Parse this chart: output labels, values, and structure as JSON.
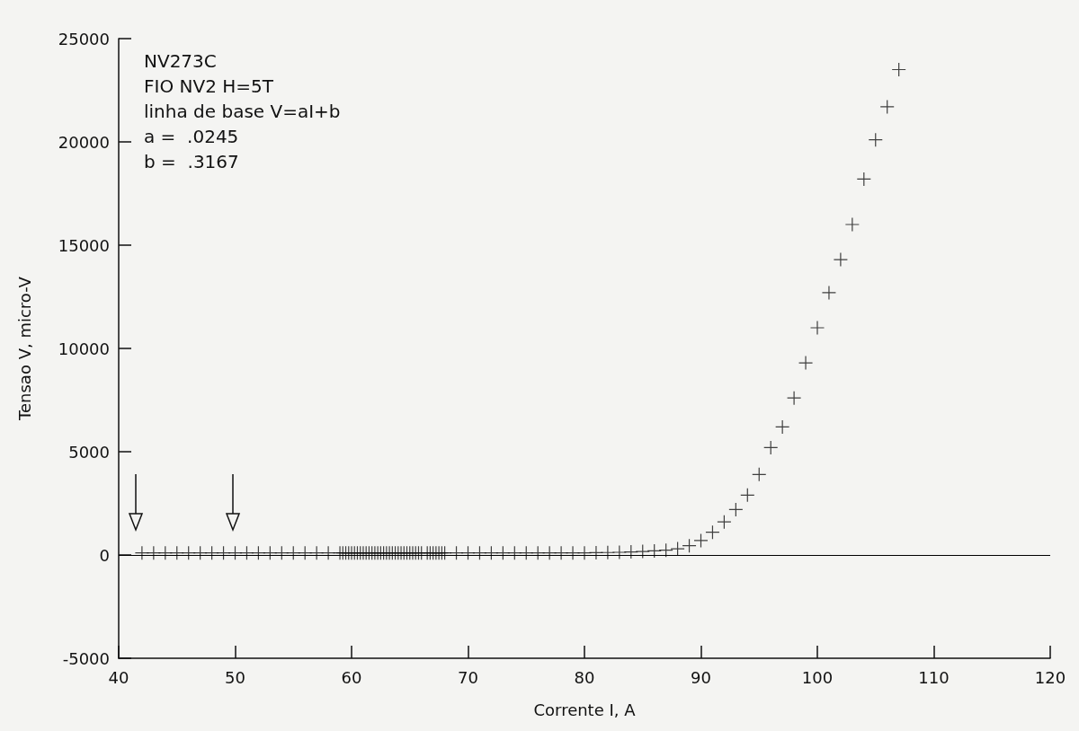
{
  "chart_data": {
    "type": "scatter",
    "xlabel": "Corrente I, A",
    "ylabel": "Tensao V, micro-V",
    "annotations": [
      "NV273C",
      "FIO NV2 H=5T",
      "linha de base V=aI+b",
      "a =  .0245",
      "b =  .3167"
    ],
    "xlim": [
      40,
      120
    ],
    "xticks": [
      40,
      50,
      60,
      70,
      80,
      90,
      100,
      110,
      120
    ],
    "ylim": [
      -5000,
      25000
    ],
    "yticks": [
      -5000,
      0,
      5000,
      10000,
      15000,
      20000,
      25000
    ],
    "marker": "cross",
    "ref_lines": [
      {
        "axis": "y",
        "value": 0,
        "color": "#000000"
      }
    ],
    "series": [
      {
        "color": "#111111",
        "x": [
          42,
          43,
          44,
          45,
          46,
          47,
          48,
          49,
          50,
          51,
          52,
          53,
          54,
          55,
          56,
          57,
          58,
          59,
          59.25,
          59.5,
          59.75,
          60,
          60.25,
          60.5,
          60.75,
          61,
          61.25,
          61.5,
          61.75,
          62,
          62.25,
          62.5,
          62.75,
          63,
          63.25,
          63.5,
          63.75,
          64,
          64.25,
          64.5,
          64.75,
          65,
          65.25,
          65.5,
          65.75,
          66,
          66.5,
          66.75,
          67,
          67.25,
          67.5,
          67.75,
          68,
          69,
          70,
          71,
          72,
          73,
          74,
          75,
          76,
          77,
          78,
          79,
          80,
          81,
          82,
          83,
          84,
          85,
          86,
          87,
          88,
          89,
          90,
          91,
          92,
          93,
          94,
          95,
          96,
          97,
          98,
          99,
          100,
          101,
          102,
          103,
          104,
          105,
          106,
          107
        ],
        "values": [
          100,
          100,
          100,
          100,
          100,
          100,
          100,
          100,
          100,
          100,
          100,
          100,
          100,
          100,
          100,
          100,
          100,
          100,
          100,
          100,
          100,
          100,
          100,
          100,
          100,
          100,
          100,
          100,
          100,
          100,
          100,
          100,
          100,
          100,
          100,
          100,
          100,
          100,
          100,
          100,
          100,
          100,
          100,
          100,
          100,
          100,
          100,
          100,
          100,
          100,
          100,
          100,
          100,
          100,
          100,
          100,
          100,
          100,
          100,
          100,
          100,
          100,
          100,
          100,
          100,
          110,
          120,
          130,
          150,
          170,
          200,
          230,
          300,
          450,
          700,
          1100,
          1600,
          2200,
          2900,
          3900,
          5200,
          6200,
          7600,
          9300,
          11000,
          12700,
          14300,
          16000,
          18200,
          20100,
          21700,
          23500
        ]
      }
    ]
  }
}
